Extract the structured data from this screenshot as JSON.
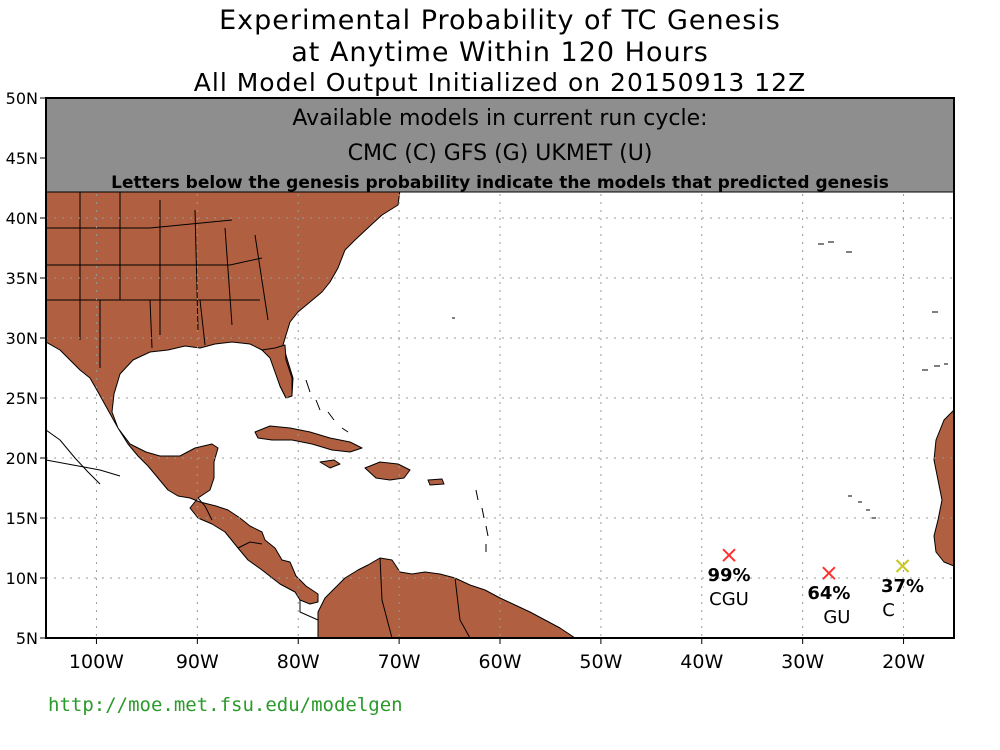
{
  "title": {
    "line1": "Experimental Probability of TC Genesis",
    "line2": "at Anytime Within 120 Hours",
    "line3": "All Model Output Initialized on 20150913 12Z"
  },
  "banner": {
    "line1": "Available models in current run cycle:",
    "line2": "CMC (C) GFS (G)  UKMET (U)",
    "line3": "Letters below the genesis probability indicate the models that predicted genesis"
  },
  "map": {
    "lon_range": [
      -105,
      -15
    ],
    "lat_range": [
      5,
      50
    ],
    "lon_ticks": [
      {
        "value": -100,
        "label": "100W"
      },
      {
        "value": -90,
        "label": "90W"
      },
      {
        "value": -80,
        "label": "80W"
      },
      {
        "value": -70,
        "label": "70W"
      },
      {
        "value": -60,
        "label": "60W"
      },
      {
        "value": -50,
        "label": "50W"
      },
      {
        "value": -40,
        "label": "40W"
      },
      {
        "value": -30,
        "label": "30W"
      },
      {
        "value": -20,
        "label": "20W"
      }
    ],
    "lat_ticks": [
      {
        "value": 5,
        "label": "5N"
      },
      {
        "value": 10,
        "label": "10N"
      },
      {
        "value": 15,
        "label": "15N"
      },
      {
        "value": 20,
        "label": "20N"
      },
      {
        "value": 25,
        "label": "25N"
      },
      {
        "value": 30,
        "label": "30N"
      },
      {
        "value": 35,
        "label": "35N"
      },
      {
        "value": 40,
        "label": "40N"
      },
      {
        "value": 45,
        "label": "45N"
      },
      {
        "value": 50,
        "label": "50N"
      }
    ],
    "land_color": "#b06040",
    "banner_color": "#8e8e8e",
    "grid": "dotted"
  },
  "markers": [
    {
      "lon": -37.3,
      "lat": 11.9,
      "probability": "99%",
      "models": "CGU",
      "color": "#ff3030"
    },
    {
      "lon": -27.4,
      "lat": 10.4,
      "probability": "64%",
      "models": "GU",
      "color": "#ff3030"
    },
    {
      "lon": -20.1,
      "lat": 11.0,
      "probability": "37%",
      "models": "C",
      "color": "#c8c820"
    }
  ],
  "footer": {
    "url": "http://moe.met.fsu.edu/modelgen",
    "url_color": "#2a9a2a"
  }
}
